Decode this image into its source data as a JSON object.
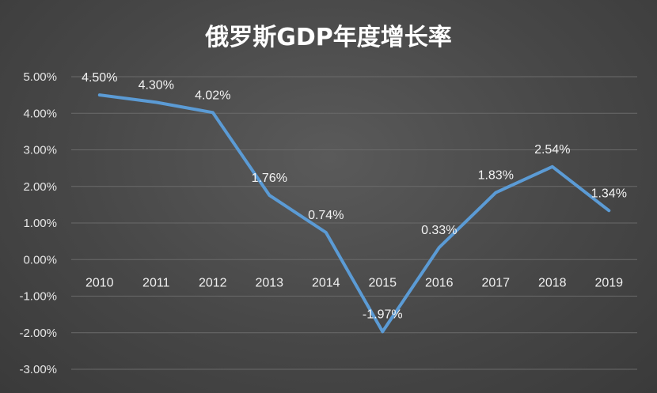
{
  "chart_data": {
    "type": "line",
    "title": "俄罗斯GDP年度增长率",
    "categories": [
      "2010",
      "2011",
      "2012",
      "2013",
      "2014",
      "2015",
      "2016",
      "2017",
      "2018",
      "2019"
    ],
    "series": [
      {
        "values": [
          4.5,
          4.3,
          4.02,
          1.76,
          0.74,
          -1.97,
          0.33,
          1.83,
          2.54,
          1.34
        ],
        "labels": [
          "4.50%",
          "4.30%",
          "4.02%",
          "1.76%",
          "0.74%",
          "-1.97%",
          "0.33%",
          "1.83%",
          "2.54%",
          "1.34%"
        ]
      }
    ],
    "ylim": [
      -3,
      5
    ],
    "yticks": [
      5,
      4,
      3,
      2,
      1,
      0,
      -1,
      -2,
      -3
    ],
    "ytick_labels": [
      "5.00%",
      "4.00%",
      "3.00%",
      "2.00%",
      "1.00%",
      "0.00%",
      "-1.00%",
      "-2.00%",
      "-3.00%"
    ],
    "grid": true,
    "colors": {
      "line": "#5b9bd5",
      "grid": "#6a6a6a",
      "text": "#ffffff"
    }
  }
}
